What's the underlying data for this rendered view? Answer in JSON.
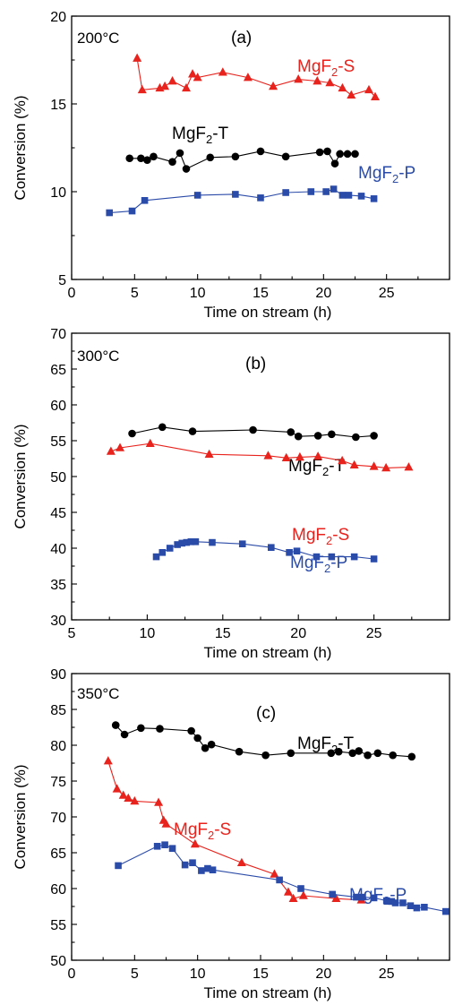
{
  "chart_data": [
    {
      "type": "line",
      "panel_label": "(a)",
      "temperature": "200°C",
      "xlabel": "Time on stream (h)",
      "ylabel": "Conversion (%)",
      "xlim": [
        0,
        30
      ],
      "ylim": [
        5,
        20
      ],
      "xticks": [
        0,
        5,
        10,
        15,
        20,
        25
      ],
      "yticks": [
        5,
        10,
        15,
        20
      ],
      "series": [
        {
          "name": "MgF2-S",
          "label_main": "MgF",
          "label_sub": "2",
          "label_tail": "-S",
          "color": "#e8231d",
          "marker": "triangle",
          "x": [
            5.2,
            5.6,
            7.0,
            7.4,
            8.0,
            9.1,
            9.6,
            10.0,
            12.0,
            14.0,
            16.0,
            18.0,
            19.5,
            20.5,
            21.5,
            22.2,
            23.6,
            24.1
          ],
          "y": [
            17.6,
            15.8,
            15.9,
            16.0,
            16.3,
            15.9,
            16.7,
            16.5,
            16.8,
            16.5,
            16.0,
            16.4,
            16.3,
            16.2,
            15.9,
            15.5,
            15.8,
            15.4
          ]
        },
        {
          "name": "MgF2-T",
          "label_main": "MgF",
          "label_sub": "2",
          "label_tail": "-T",
          "color": "#000000",
          "marker": "circle",
          "x": [
            4.6,
            5.5,
            6.0,
            6.5,
            8.0,
            8.6,
            9.1,
            11.0,
            13.0,
            15.0,
            17.0,
            19.7,
            20.3,
            20.9,
            21.3,
            21.9,
            22.5
          ],
          "y": [
            11.9,
            11.9,
            11.8,
            12.0,
            11.7,
            12.2,
            11.3,
            11.95,
            12.0,
            12.3,
            12.0,
            12.25,
            12.3,
            11.6,
            12.15,
            12.15,
            12.15
          ]
        },
        {
          "name": "MgF2-P",
          "label_main": "MgF",
          "label_sub": "2",
          "label_tail": "-P",
          "color": "#2b4ba8",
          "marker": "square",
          "x": [
            3.0,
            4.8,
            5.8,
            10.0,
            13.0,
            15.0,
            17.0,
            19.0,
            20.2,
            20.8,
            21.5,
            22.0,
            23.0,
            24.0
          ],
          "y": [
            8.8,
            8.9,
            9.5,
            9.8,
            9.85,
            9.65,
            9.95,
            10.0,
            10.0,
            10.15,
            9.8,
            9.8,
            9.75,
            9.6
          ]
        }
      ]
    },
    {
      "type": "line",
      "panel_label": "(b)",
      "temperature": "300°C",
      "xlabel": "Time on stream (h)",
      "ylabel": "Conversion (%)",
      "xlim": [
        5,
        30
      ],
      "ylim": [
        30,
        70
      ],
      "xticks": [
        5,
        10,
        15,
        20,
        25
      ],
      "yticks": [
        30,
        35,
        40,
        45,
        50,
        55,
        60,
        65,
        70
      ],
      "series": [
        {
          "name": "MgF2-T",
          "label_main": "MgF",
          "label_sub": "2",
          "label_tail": "-T",
          "color": "#000000",
          "marker": "circle",
          "x": [
            9.0,
            11.0,
            13.0,
            17.0,
            19.5,
            20.0,
            21.3,
            22.2,
            23.8,
            25.0
          ],
          "y": [
            56.0,
            56.9,
            56.3,
            56.5,
            56.2,
            55.6,
            55.7,
            55.9,
            55.5,
            55.7
          ]
        },
        {
          "name": "MgF2-S",
          "label_main": "MgF",
          "label_sub": "2",
          "label_tail": "-S",
          "color": "#e8231d",
          "marker": "triangle",
          "x": [
            7.6,
            8.2,
            10.2,
            14.1,
            18.0,
            19.2,
            20.1,
            21.3,
            22.9,
            23.7,
            25.0,
            25.8,
            27.3
          ],
          "y": [
            53.5,
            54.0,
            54.6,
            53.1,
            52.9,
            52.6,
            52.7,
            52.8,
            52.2,
            51.6,
            51.4,
            51.2,
            51.3
          ]
        },
        {
          "name": "MgF2-P",
          "label_main": "MgF",
          "label_sub": "2",
          "label_tail": "-P",
          "color": "#2b4ba8",
          "marker": "square",
          "x": [
            10.6,
            11.0,
            11.5,
            12.0,
            12.3,
            12.6,
            12.9,
            13.2,
            14.3,
            16.3,
            18.2,
            19.4,
            19.9,
            21.2,
            22.2,
            23.7,
            25.0
          ],
          "y": [
            38.8,
            39.4,
            40.0,
            40.5,
            40.7,
            40.8,
            40.9,
            40.9,
            40.8,
            40.6,
            40.1,
            39.4,
            39.6,
            38.8,
            38.8,
            38.8,
            38.5
          ]
        }
      ]
    },
    {
      "type": "line",
      "panel_label": "(c)",
      "temperature": "350°C",
      "xlabel": "Time on stream (h)",
      "ylabel": "Conversion (%)",
      "xlim": [
        0,
        30
      ],
      "ylim": [
        50,
        90
      ],
      "xticks": [
        0,
        5,
        10,
        15,
        20,
        25
      ],
      "yticks": [
        50,
        55,
        60,
        65,
        70,
        75,
        80,
        85,
        90
      ],
      "series": [
        {
          "name": "MgF2-T",
          "label_main": "MgF",
          "label_sub": "2",
          "label_tail": "-T",
          "color": "#000000",
          "marker": "circle",
          "x": [
            3.5,
            4.2,
            5.5,
            7.0,
            9.5,
            10.0,
            10.6,
            11.1,
            13.3,
            15.4,
            17.4,
            20.6,
            21.2,
            22.3,
            22.8,
            23.5,
            24.3,
            25.5,
            27.0
          ],
          "y": [
            82.8,
            81.5,
            82.4,
            82.3,
            82.0,
            81.0,
            79.6,
            80.1,
            79.1,
            78.6,
            78.9,
            78.9,
            79.1,
            78.9,
            79.2,
            78.6,
            78.9,
            78.6,
            78.4
          ]
        },
        {
          "name": "MgF2-S",
          "label_main": "MgF",
          "label_sub": "2",
          "label_tail": "-S",
          "color": "#e8231d",
          "marker": "triangle",
          "x": [
            2.9,
            3.6,
            4.1,
            4.5,
            5.0,
            6.9,
            7.3,
            7.5,
            9.8,
            13.5,
            16.1,
            17.2,
            17.6,
            18.4,
            21.0,
            23.0
          ],
          "y": [
            77.8,
            73.9,
            73.0,
            72.6,
            72.2,
            72.0,
            69.5,
            69.0,
            66.2,
            63.6,
            62.0,
            59.5,
            58.6,
            59.0,
            58.6,
            58.4
          ]
        },
        {
          "name": "MgF2-P",
          "label_main": "MgF",
          "label_sub": "2",
          "label_tail": "-P",
          "color": "#2b4ba8",
          "marker": "square",
          "x": [
            3.7,
            6.8,
            7.4,
            8.0,
            9.0,
            9.6,
            10.3,
            10.8,
            11.2,
            16.5,
            18.2,
            20.7,
            22.6,
            23.1,
            24.0,
            25.0,
            25.4,
            25.7,
            26.3,
            26.9,
            27.4,
            28.0,
            29.7
          ],
          "y": [
            63.2,
            65.9,
            66.1,
            65.6,
            63.3,
            63.6,
            62.5,
            62.8,
            62.6,
            61.2,
            60.0,
            59.2,
            58.8,
            58.8,
            58.7,
            58.3,
            58.2,
            58.0,
            58.0,
            57.6,
            57.3,
            57.4,
            56.8
          ]
        }
      ]
    }
  ]
}
